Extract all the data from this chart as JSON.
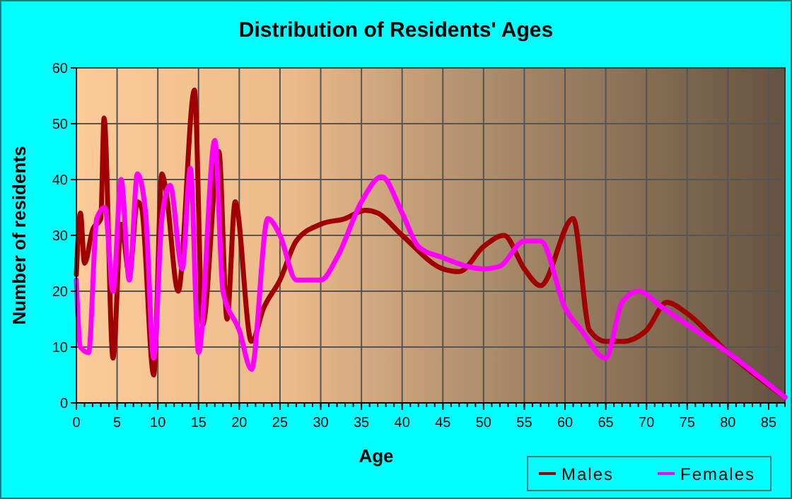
{
  "chart_data": {
    "type": "line",
    "title": "Distribution of Residents' Ages",
    "xlabel": "Age",
    "ylabel": "Number of residents",
    "xlim": [
      0,
      87
    ],
    "xticks": [
      0,
      5,
      10,
      15,
      20,
      25,
      30,
      35,
      40,
      45,
      50,
      55,
      60,
      65,
      70,
      75,
      80,
      85
    ],
    "ylim": [
      0,
      60
    ],
    "yticks": [
      0,
      10,
      20,
      30,
      40,
      50,
      60
    ],
    "grid": true,
    "legend": "bottom right",
    "marker": "none",
    "line_style": "solid",
    "series": [
      {
        "name": "Males",
        "color": "#a00000",
        "x": [
          0,
          0.5,
          1,
          2,
          3,
          3.4,
          4.5,
          5.5,
          6.5,
          7.5,
          8,
          9.5,
          10.5,
          11,
          12.5,
          14.5,
          15.5,
          17.5,
          18.5,
          19.5,
          21.5,
          23,
          25,
          27,
          30,
          33,
          35.5,
          37,
          40,
          45,
          47,
          50,
          52.5,
          55,
          57,
          61,
          63,
          65,
          67,
          70,
          72.5,
          75,
          80,
          87
        ],
        "values": [
          23,
          34,
          25,
          31,
          33,
          51,
          8,
          32,
          23,
          36,
          35,
          5,
          41,
          38,
          20,
          56,
          14,
          45,
          15,
          36,
          11,
          17,
          22,
          29,
          32,
          33,
          34.5,
          34,
          30,
          24,
          23.5,
          28,
          30,
          24,
          21,
          33,
          13,
          11,
          11,
          13,
          18,
          16,
          9,
          1
        ]
      },
      {
        "name": "Females",
        "color": "#ff00ff",
        "x": [
          0,
          0.5,
          1.5,
          2.5,
          3.5,
          4.5,
          5.5,
          6.5,
          7.5,
          8.5,
          9.5,
          10.5,
          11.5,
          13,
          14,
          15,
          17,
          18,
          20,
          21.5,
          23.5,
          25,
          27,
          30,
          32,
          35,
          37.5,
          40,
          42,
          45,
          50,
          52,
          55,
          57,
          60,
          62,
          65,
          67,
          69,
          72,
          75,
          80,
          87
        ],
        "values": [
          22,
          10,
          9,
          33,
          35,
          20,
          40,
          22,
          41,
          34,
          8,
          33,
          39,
          24,
          42,
          9,
          47,
          20,
          13,
          6,
          33,
          30,
          22,
          22,
          26,
          36,
          40.5,
          34,
          28,
          26,
          24,
          24.5,
          29,
          29,
          17,
          13,
          8,
          18,
          20,
          17,
          14,
          9,
          1
        ]
      }
    ]
  }
}
